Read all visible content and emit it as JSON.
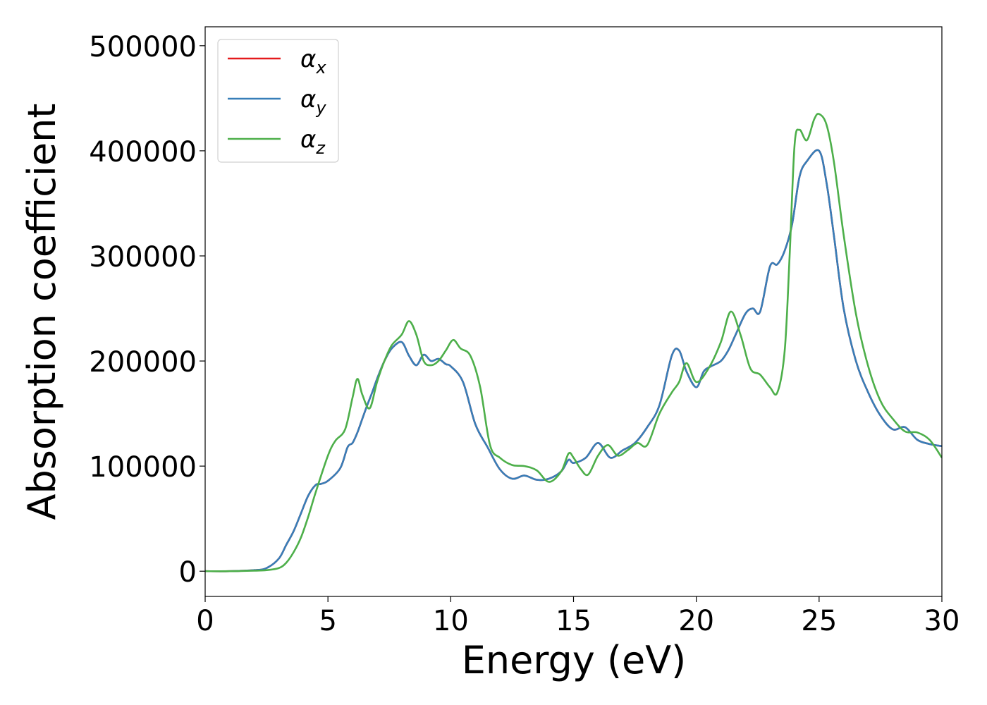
{
  "chart_data": {
    "type": "line",
    "xlabel": "Energy (eV)",
    "ylabel": "Absorption coefficient",
    "xlim": [
      0,
      30
    ],
    "ylim": [
      -24000,
      518000
    ],
    "xticks": [
      0,
      5,
      10,
      15,
      20,
      25,
      30
    ],
    "xtick_labels": [
      "0",
      "5",
      "10",
      "15",
      "20",
      "25",
      "30"
    ],
    "yticks": [
      0,
      100000,
      200000,
      300000,
      400000,
      500000
    ],
    "ytick_labels": [
      "0",
      "100000",
      "200000",
      "300000",
      "400000",
      "500000"
    ],
    "grid": false,
    "legend_position": "top-left",
    "series": [
      {
        "name": "α_x",
        "color": "#e41a1c",
        "x": [
          0,
          1,
          2,
          2.5,
          3,
          3.3,
          3.6,
          3.9,
          4.2,
          4.5,
          4.7,
          5,
          5.5,
          5.8,
          6,
          6.2,
          6.4,
          6.6,
          6.8,
          7,
          7.3,
          7.6,
          8,
          8.3,
          8.6,
          8.9,
          9.2,
          9.5,
          9.8,
          10,
          10.5,
          11,
          11.5,
          12,
          12.5,
          13,
          13.5,
          14,
          14.5,
          14.8,
          15,
          15.5,
          16,
          16.5,
          17,
          17.5,
          18,
          18.5,
          19,
          19.3,
          19.6,
          20,
          20.3,
          20.6,
          21,
          21.3,
          21.6,
          22,
          22.3,
          22.6,
          23,
          23.3,
          23.6,
          23.9,
          24.2,
          24.5,
          25,
          25.3,
          25.6,
          26,
          26.5,
          27,
          27.5,
          28,
          28.5,
          29,
          29.5,
          30
        ],
        "y": [
          0,
          0,
          1000,
          3000,
          12000,
          25000,
          38000,
          55000,
          72000,
          82000,
          83000,
          86000,
          98000,
          118000,
          122000,
          132000,
          145000,
          158000,
          170000,
          183000,
          200000,
          212000,
          218000,
          205000,
          196000,
          206000,
          200000,
          202000,
          197000,
          195000,
          180000,
          140000,
          118000,
          97000,
          88000,
          91000,
          87000,
          88000,
          95000,
          106000,
          103000,
          108000,
          122000,
          108000,
          115000,
          122000,
          137000,
          158000,
          205000,
          210000,
          190000,
          175000,
          190000,
          195000,
          200000,
          210000,
          225000,
          245000,
          250000,
          247000,
          290000,
          292000,
          305000,
          330000,
          375000,
          390000,
          400000,
          370000,
          320000,
          250000,
          200000,
          170000,
          148000,
          135000,
          137000,
          125000,
          121000,
          119000
        ]
      },
      {
        "name": "α_y",
        "color": "#377eb8",
        "x": [
          0,
          1,
          2,
          2.5,
          3,
          3.3,
          3.6,
          3.9,
          4.2,
          4.5,
          4.7,
          5,
          5.5,
          5.8,
          6,
          6.2,
          6.4,
          6.6,
          6.8,
          7,
          7.3,
          7.6,
          8,
          8.3,
          8.6,
          8.9,
          9.2,
          9.5,
          9.8,
          10,
          10.5,
          11,
          11.5,
          12,
          12.5,
          13,
          13.5,
          14,
          14.5,
          14.8,
          15,
          15.5,
          16,
          16.5,
          17,
          17.5,
          18,
          18.5,
          19,
          19.3,
          19.6,
          20,
          20.3,
          20.6,
          21,
          21.3,
          21.6,
          22,
          22.3,
          22.6,
          23,
          23.3,
          23.6,
          23.9,
          24.2,
          24.5,
          25,
          25.3,
          25.6,
          26,
          26.5,
          27,
          27.5,
          28,
          28.5,
          29,
          29.5,
          30
        ],
        "y": [
          0,
          0,
          1000,
          3000,
          12000,
          25000,
          38000,
          55000,
          72000,
          82000,
          83000,
          86000,
          98000,
          118000,
          122000,
          132000,
          145000,
          158000,
          170000,
          183000,
          200000,
          212000,
          218000,
          205000,
          196000,
          206000,
          200000,
          202000,
          197000,
          195000,
          180000,
          140000,
          118000,
          97000,
          88000,
          91000,
          87000,
          88000,
          95000,
          106000,
          103000,
          108000,
          122000,
          108000,
          115000,
          122000,
          137000,
          158000,
          205000,
          210000,
          190000,
          175000,
          190000,
          195000,
          200000,
          210000,
          225000,
          245000,
          250000,
          247000,
          290000,
          292000,
          305000,
          330000,
          375000,
          390000,
          400000,
          370000,
          320000,
          250000,
          200000,
          170000,
          148000,
          135000,
          137000,
          125000,
          121000,
          119000
        ]
      },
      {
        "name": "α_z",
        "color": "#4daf4a",
        "x": [
          0,
          1,
          2,
          2.5,
          3,
          3.3,
          3.6,
          3.9,
          4.2,
          4.5,
          5,
          5.3,
          5.7,
          6,
          6.2,
          6.4,
          6.7,
          7,
          7.3,
          7.6,
          8,
          8.3,
          8.6,
          8.9,
          9.2,
          9.5,
          9.8,
          10.1,
          10.4,
          10.8,
          11.2,
          11.6,
          12,
          12.5,
          13,
          13.5,
          14,
          14.5,
          14.8,
          15,
          15.3,
          15.6,
          16,
          16.4,
          16.8,
          17.2,
          17.6,
          18,
          18.5,
          19,
          19.3,
          19.6,
          20,
          20.5,
          21,
          21.4,
          21.8,
          22.2,
          22.6,
          23,
          23.3,
          23.6,
          23.8,
          24,
          24.2,
          24.5,
          24.8,
          25,
          25.3,
          25.6,
          26,
          26.5,
          27,
          27.5,
          28,
          28.5,
          29,
          29.5,
          30
        ],
        "y": [
          0,
          0,
          500,
          1000,
          3000,
          8000,
          18000,
          32000,
          52000,
          75000,
          110000,
          124000,
          135000,
          165000,
          183000,
          168000,
          155000,
          180000,
          200000,
          215000,
          225000,
          238000,
          225000,
          200000,
          196000,
          200000,
          210000,
          220000,
          212000,
          205000,
          175000,
          120000,
          108000,
          101000,
          100000,
          96000,
          85000,
          95000,
          112000,
          108000,
          97000,
          92000,
          110000,
          120000,
          110000,
          115000,
          122000,
          120000,
          150000,
          170000,
          180000,
          198000,
          180000,
          193000,
          218000,
          247000,
          225000,
          193000,
          187000,
          175000,
          170000,
          210000,
          300000,
          405000,
          420000,
          410000,
          430000,
          435000,
          425000,
          390000,
          320000,
          245000,
          195000,
          162000,
          145000,
          133000,
          132000,
          125000,
          108000
        ]
      }
    ]
  }
}
